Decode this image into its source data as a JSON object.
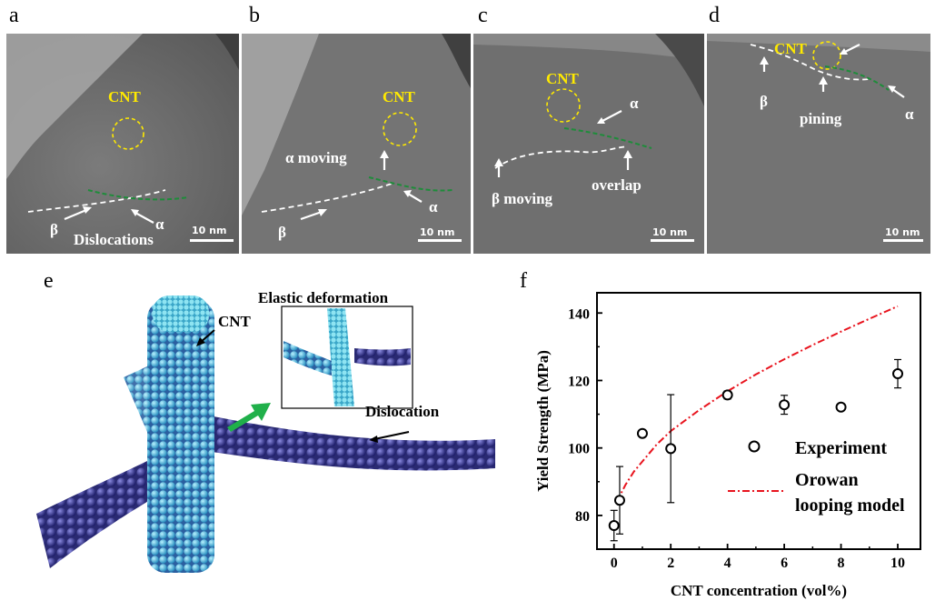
{
  "panels": {
    "a": {
      "letter": "a",
      "cnt": "",
      "beta": "β",
      "alpha": "α",
      "dislocations": "Dislocations",
      "scale": "10 nm"
    },
    "b": {
      "letter": "b",
      "cnt": "CNT",
      "beta": "β",
      "alpha": "α",
      "alpha_moving": "α moving",
      "scale": "10 nm"
    },
    "c": {
      "letter": "c",
      "cnt": "CNT",
      "alpha": "α",
      "beta_moving": "β moving",
      "overlap": "overlap",
      "scale": "10 nm"
    },
    "d": {
      "letter": "d",
      "cnt": "CNT",
      "beta": "β",
      "alpha": "α",
      "pining": "pining",
      "scale": "10 nm"
    }
  },
  "panel_a_cnt": "CNT",
  "panel_e": {
    "letter": "e",
    "cnt": "CNT",
    "inset_title": "Elastic deformation",
    "dislocation": "Dislocation"
  },
  "panel_f": {
    "letter": "f"
  },
  "colors": {
    "tem_bg": "#8a8a8a",
    "cnt_circle": "#ffea00",
    "dislocation_green": "#1e8c3a",
    "model_red": "#e8141e",
    "atom_dark": "#2a2a7a",
    "atom_light": "#3fb8e0"
  },
  "chart_data": {
    "type": "scatter",
    "xlabel": "CNT concentration (vol%)",
    "ylabel": "Yield Strength (MPa)",
    "xlim": [
      -0.6,
      10.8
    ],
    "ylim": [
      70,
      146
    ],
    "xticks": [
      0,
      2,
      4,
      6,
      8,
      10
    ],
    "yticks": [
      80,
      100,
      120,
      140
    ],
    "series": [
      {
        "name": "Experiment",
        "x": [
          0,
          0.2,
          1,
          2,
          4,
          6,
          8,
          10
        ],
        "y": [
          77,
          84.5,
          104.3,
          99.8,
          115.7,
          112.8,
          112.1,
          122
        ],
        "err": [
          4.5,
          10,
          1,
          16,
          1.2,
          2.8,
          1,
          4.2
        ]
      },
      {
        "name": "Orowan looping model",
        "x": [
          0.1,
          0.2,
          0.4,
          0.7,
          1,
          1.5,
          2,
          3,
          4,
          5,
          6,
          7,
          8,
          9,
          10
        ],
        "y": [
          84,
          85.7,
          89,
          93,
          96,
          101,
          105,
          111.2,
          116.8,
          121.8,
          126.3,
          130.5,
          134.5,
          138.3,
          142
        ]
      }
    ],
    "legend": [
      "Experiment",
      "Orowan",
      "looping model"
    ],
    "legend_position": "bottom-right"
  }
}
